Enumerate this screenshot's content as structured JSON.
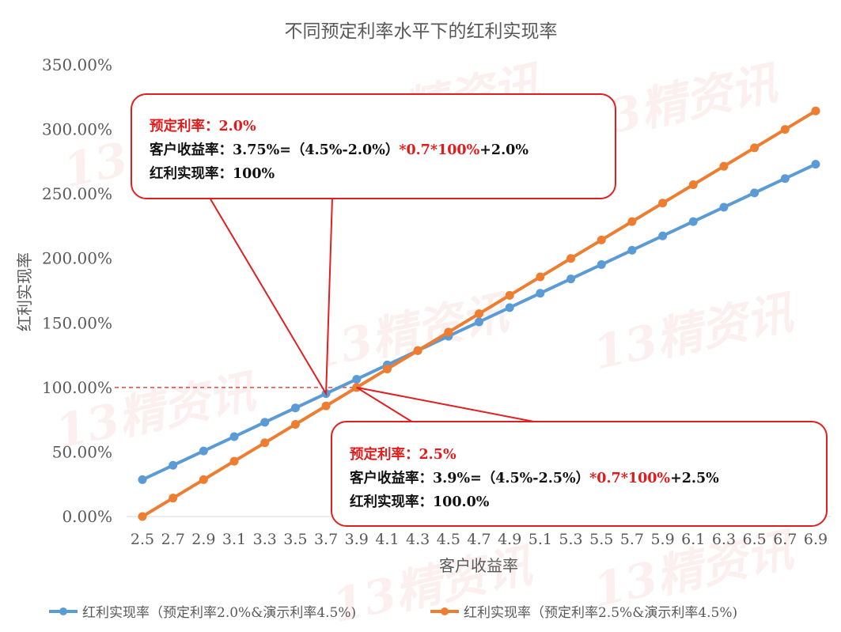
{
  "chart_data": {
    "type": "line",
    "title": "不同预定利率水平下的红利实现率",
    "xlabel": "客户收益率",
    "ylabel": "红利实现率",
    "categories": [
      "2.5",
      "2.7",
      "2.9",
      "3.1",
      "3.3",
      "3.5",
      "3.7",
      "3.9",
      "4.1",
      "4.3",
      "4.5",
      "4.7",
      "4.9",
      "5.1",
      "5.3",
      "5.5",
      "5.7",
      "5.9",
      "6.1",
      "6.3",
      "6.5",
      "6.7",
      "6.9"
    ],
    "ylim": [
      0,
      350
    ],
    "yticks": [
      "0.00%",
      "50.00%",
      "100.00%",
      "150.00%",
      "200.00%",
      "250.00%",
      "300.00%",
      "350.00%"
    ],
    "grid": false,
    "legend_position": "bottom",
    "reference_line": {
      "y": 100
    },
    "series": [
      {
        "name": "红利实现率（预定利率2.0%&演示利率4.5%)",
        "color": "#5b9bd5",
        "values": [
          28.57,
          39.68,
          50.79,
          61.9,
          73.02,
          84.13,
          95.24,
          106.35,
          117.46,
          128.57,
          139.68,
          150.79,
          161.9,
          173.02,
          184.13,
          195.24,
          206.35,
          217.46,
          228.57,
          239.68,
          250.79,
          261.9,
          273.02
        ]
      },
      {
        "name": "红利实现率（预定利率2.5%&演示利率4.5%)",
        "color": "#ed7d31",
        "values": [
          0.0,
          14.29,
          28.57,
          42.86,
          57.14,
          71.43,
          85.71,
          100.0,
          114.29,
          128.57,
          142.86,
          157.14,
          171.43,
          185.71,
          200.0,
          214.29,
          228.57,
          242.86,
          257.14,
          271.43,
          285.71,
          300.0,
          314.29
        ]
      }
    ],
    "annotations": [
      {
        "line1": "预定利率：2.0%",
        "line2_a": "客户收益率：3.75%=（4.5%-2.0%）",
        "line2_b": "*0.7*100%",
        "line2_c": "+2.0%",
        "line3": "红利实现率：100%",
        "target_x": 3.7
      },
      {
        "line1": "预定利率：2.5%",
        "line2_a": "客户收益率：3.9%=（4.5%-2.5%）",
        "line2_b": "*0.7*100%",
        "line2_c": "+2.5%",
        "line3": "红利实现率：100.0%",
        "target_x": 3.9
      }
    ],
    "watermark": "13精资讯",
    "colors": {
      "axis_text": "#595959",
      "axis_line": "#d9d9d9",
      "callout": "#e02020",
      "red_text": "#e41a1a"
    }
  }
}
